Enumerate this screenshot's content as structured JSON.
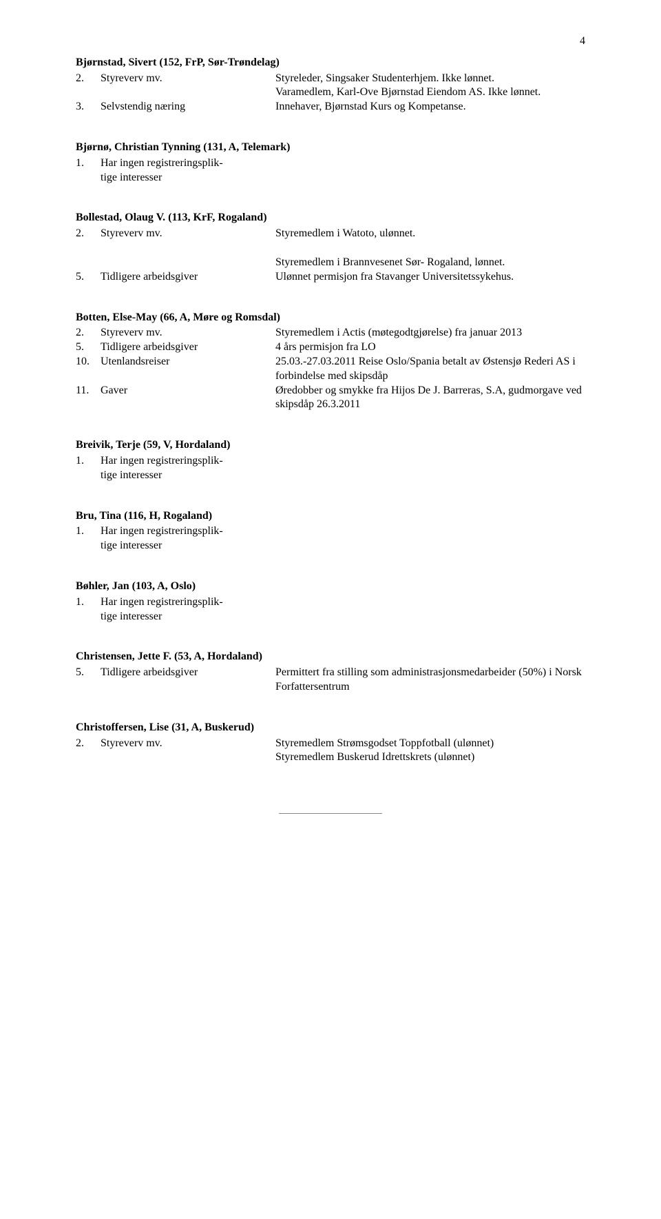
{
  "page_number": "4",
  "entries": [
    {
      "name": "Bjørnstad, Sivert (152, FrP, Sør-Trøndelag)",
      "items": [
        {
          "num": "2.",
          "label": "Styreverv mv.",
          "value": "Styreleder, Singsaker Studenterhjem. Ikke lønnet."
        },
        {
          "num": "",
          "label": "",
          "value": "Varamedlem, Karl-Ove Bjørnstad Eiendom AS. Ikke lønnet."
        },
        {
          "num": "3.",
          "label": "Selvstendig næring",
          "value": "Innehaver, Bjørnstad Kurs og Kompetanse."
        }
      ]
    },
    {
      "name": "Bjørnø, Christian Tynning (131, A, Telemark)",
      "items": [
        {
          "num": "1.",
          "label_wide": "Har ingen registreringsplik-",
          "value": ""
        },
        {
          "num": "",
          "label_wide": "tige interesser",
          "value": ""
        }
      ]
    },
    {
      "name": "Bollestad, Olaug V. (113, KrF, Rogaland)",
      "items": [
        {
          "num": "2.",
          "label": "Styreverv mv.",
          "value": "Styremedlem i Watoto, ulønnet."
        },
        {
          "spacer": true
        },
        {
          "num": "",
          "label": "",
          "value": "Styremedlem i Brannvesenet Sør- Rogaland, lønnet."
        },
        {
          "num": "5.",
          "label": "Tidligere arbeidsgiver",
          "value": "Ulønnet permisjon fra Stavanger Universitetssykehus."
        }
      ]
    },
    {
      "name": "Botten, Else-May (66, A, Møre og Romsdal)",
      "items": [
        {
          "num": "2.",
          "label": "Styreverv mv.",
          "value": "Styremedlem i Actis (møtegodtgjørelse) fra januar 2013"
        },
        {
          "num": "5.",
          "label": "Tidligere arbeidsgiver",
          "value": "4 års permisjon fra LO"
        },
        {
          "num": "10.",
          "label": "Utenlandsreiser",
          "value": "25.03.-27.03.2011 Reise Oslo/Spania betalt av Østensjø Rederi AS i forbindelse med skipsdåp"
        },
        {
          "num": "11.",
          "label": "Gaver",
          "value": "Øredobber og smykke fra Hijos De J. Barreras, S.A, gudmorgave ved  skipsdåp 26.3.2011"
        }
      ]
    },
    {
      "name": "Breivik, Terje (59, V, Hordaland)",
      "items": [
        {
          "num": "1.",
          "label_wide": "Har ingen registreringsplik-",
          "value": ""
        },
        {
          "num": "",
          "label_wide": "tige interesser",
          "value": ""
        }
      ]
    },
    {
      "name": "Bru, Tina (116, H, Rogaland)",
      "items": [
        {
          "num": "1.",
          "label_wide": "Har ingen registreringsplik-",
          "value": ""
        },
        {
          "num": "",
          "label_wide": "tige interesser",
          "value": ""
        }
      ]
    },
    {
      "name": "Bøhler, Jan (103, A, Oslo)",
      "items": [
        {
          "num": "1.",
          "label_wide": "Har ingen registreringsplik-",
          "value": ""
        },
        {
          "num": "",
          "label_wide": "tige interesser",
          "value": ""
        }
      ]
    },
    {
      "name": "Christensen, Jette F. (53, A, Hordaland)",
      "items": [
        {
          "num": "5.",
          "label": "Tidligere arbeidsgiver",
          "value": "Permittert fra stilling som administrasjonsmedarbeider (50%) i Norsk Forfattersentrum"
        }
      ]
    },
    {
      "name": "Christoffersen, Lise (31, A, Buskerud)",
      "items": [
        {
          "num": "2.",
          "label": "Styreverv mv.",
          "value": "Styremedlem Strømsgodset Toppfotball (ulønnet)"
        },
        {
          "num": "",
          "label": "",
          "value": "Styremedlem Buskerud Idrettskrets (ulønnet)"
        }
      ]
    }
  ]
}
